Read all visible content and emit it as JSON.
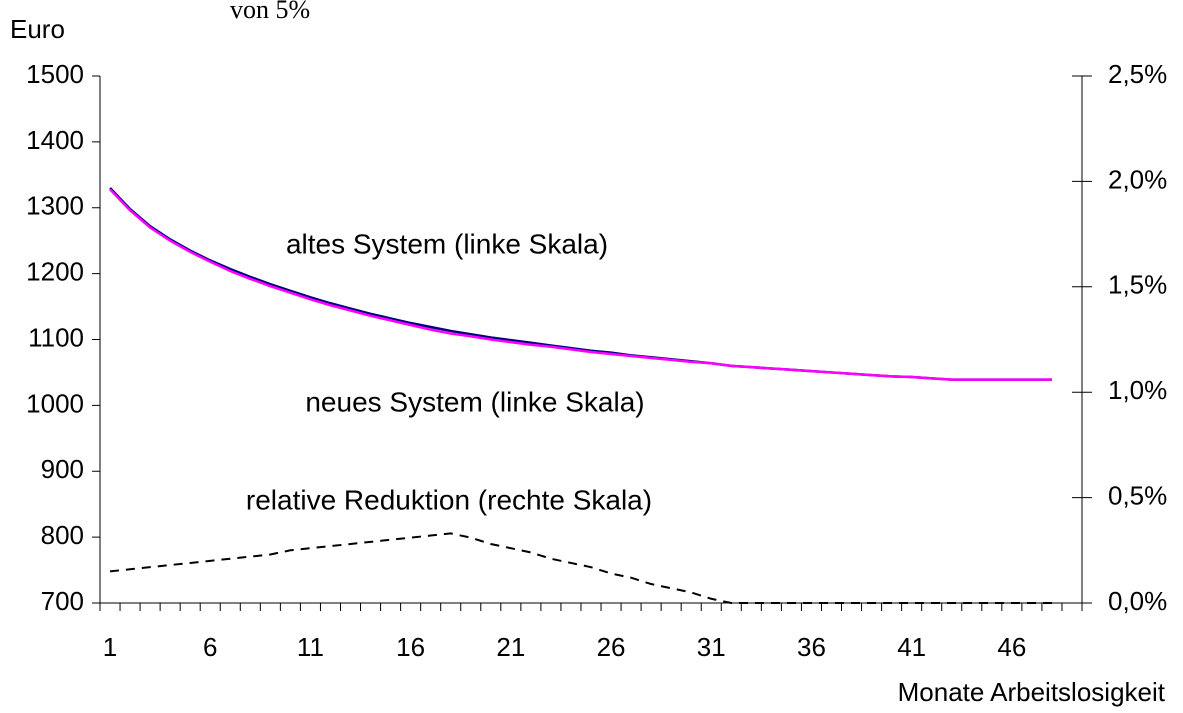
{
  "chart_data": {
    "type": "line",
    "title": "von 5%",
    "y_label": "Euro",
    "x_label": "Monate Arbeitslosigkeit",
    "annotations": [
      "altes System (linke Skala)",
      "neues System (linke Skala)",
      "relative Reduktion (rechte Skala)"
    ],
    "categories": [
      1,
      null,
      null,
      null,
      null,
      6,
      null,
      null,
      null,
      null,
      11,
      null,
      null,
      null,
      null,
      16,
      null,
      null,
      null,
      null,
      21,
      null,
      null,
      null,
      null,
      26,
      null,
      null,
      null,
      null,
      31,
      null,
      null,
      null,
      null,
      36,
      null,
      null,
      null,
      null,
      41,
      null,
      null,
      null,
      null,
      46,
      null,
      null
    ],
    "ylim": [
      700,
      1500
    ],
    "yticks": [
      700,
      800,
      900,
      1000,
      1100,
      1200,
      1300,
      1400,
      1500
    ],
    "y2lim": [
      0,
      2.5
    ],
    "y2ticks": [
      {
        "value": 0,
        "label": "0,0%"
      },
      {
        "value": 0.5,
        "label": "0,5%"
      },
      {
        "value": 1,
        "label": "1,0%"
      },
      {
        "value": 1.5,
        "label": "1,5%"
      },
      {
        "value": 2,
        "label": "2,0%"
      },
      {
        "value": 2.5,
        "label": "2,5%"
      }
    ],
    "series": [
      {
        "name": "altes System",
        "color": "#000080",
        "dash": false,
        "values": [
          1330,
          1298,
          1272,
          1252,
          1235,
          1220,
          1207,
          1195,
          1184,
          1174,
          1164,
          1155,
          1147,
          1139,
          1132,
          1125,
          1119,
          1113,
          1108,
          1103,
          1099,
          1095,
          1091,
          1087,
          1083,
          1080,
          1076,
          1073,
          1070,
          1067,
          1064,
          1060,
          1058,
          1056,
          1054,
          1052,
          1050,
          1048,
          1046,
          1044,
          1043,
          1041,
          1039,
          1039,
          1039,
          1039,
          1039,
          1039
        ]
      },
      {
        "name": "neues System",
        "color": "#ff00ff",
        "dash": false,
        "values": [
          1328,
          1296,
          1270,
          1250,
          1233,
          1218,
          1204,
          1192,
          1181,
          1171,
          1161,
          1152,
          1144,
          1136,
          1129,
          1122,
          1115,
          1109,
          1105,
          1100,
          1096,
          1092,
          1089,
          1085,
          1081,
          1078,
          1075,
          1072,
          1069,
          1066,
          1064,
          1060,
          1058,
          1056,
          1054,
          1052,
          1050,
          1048,
          1046,
          1044,
          1043,
          1041,
          1039,
          1039,
          1039,
          1039,
          1039,
          1039
        ]
      },
      {
        "name": "relative Reduktion",
        "color": "#000000",
        "dash": true,
        "axis": "y2",
        "values": [
          0.15,
          0.16,
          0.17,
          0.18,
          0.19,
          0.2,
          0.21,
          0.22,
          0.23,
          0.25,
          0.26,
          0.27,
          0.28,
          0.29,
          0.3,
          0.31,
          0.32,
          0.33,
          0.31,
          0.28,
          0.26,
          0.24,
          0.21,
          0.19,
          0.17,
          0.14,
          0.12,
          0.09,
          0.07,
          0.05,
          0.02,
          0,
          0,
          0,
          0,
          0,
          0,
          0,
          0,
          0,
          0,
          0,
          0,
          0,
          0,
          0,
          0,
          0
        ]
      }
    ]
  }
}
